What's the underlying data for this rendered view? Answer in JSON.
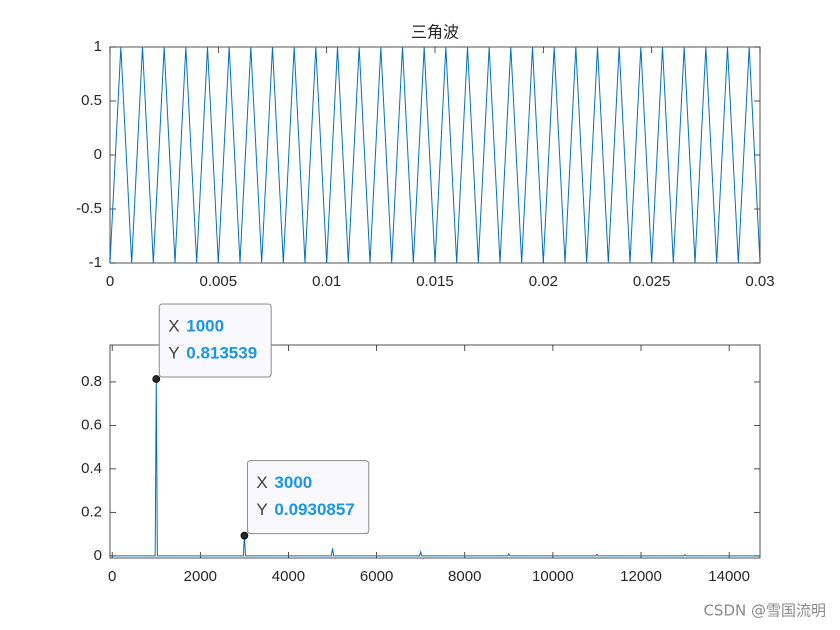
{
  "chart_data": [
    {
      "type": "line",
      "title": "三角波",
      "color": "#0072BD",
      "x": [
        0,
        0.0005,
        0.001,
        0.0015,
        0.002,
        0.0025,
        0.003,
        0.0035,
        0.004,
        0.0045,
        0.005,
        0.0055,
        0.006,
        0.0065,
        0.007,
        0.0075,
        0.008,
        0.0085,
        0.009,
        0.0095,
        0.01,
        0.0105,
        0.011,
        0.0115,
        0.012,
        0.0125,
        0.013,
        0.0135,
        0.014,
        0.0145,
        0.015,
        0.0155,
        0.016,
        0.0165,
        0.017,
        0.0175,
        0.018,
        0.0185,
        0.019,
        0.0195,
        0.02,
        0.0205,
        0.021,
        0.0215,
        0.022,
        0.0225,
        0.023,
        0.0235,
        0.024,
        0.0245,
        0.025,
        0.0255,
        0.026,
        0.0265,
        0.027,
        0.0275,
        0.028,
        0.0285,
        0.029,
        0.0295,
        0.03
      ],
      "values": [
        -1,
        1,
        -1,
        1,
        -1,
        1,
        -1,
        1,
        -1,
        1,
        -1,
        1,
        -1,
        1,
        -1,
        1,
        -1,
        1,
        -1,
        1,
        -1,
        1,
        -1,
        1,
        -1,
        1,
        -1,
        1,
        -1,
        1,
        -1,
        1,
        -1,
        1,
        -1,
        1,
        -1,
        1,
        -1,
        1,
        -1,
        1,
        -1,
        1,
        -1,
        1,
        -1,
        1,
        -1,
        1,
        -1,
        1,
        -1,
        1,
        -1,
        1,
        -1,
        1,
        -1,
        1,
        -1
      ],
      "xlim": [
        0,
        0.03
      ],
      "xticks": [
        0,
        0.005,
        0.01,
        0.015,
        0.02,
        0.025,
        0.03
      ],
      "ylim": [
        -1,
        1
      ],
      "yticks": [
        -1,
        -0.5,
        0,
        0.5,
        1
      ]
    },
    {
      "type": "line",
      "color": "#0072BD",
      "x": [
        0,
        975,
        1000,
        1025,
        2975,
        3000,
        3025,
        4975,
        5000,
        5025,
        6975,
        7000,
        7025,
        8975,
        9000,
        9025,
        10975,
        11000,
        11025,
        12975,
        13000,
        13025,
        14700
      ],
      "values": [
        0,
        0,
        0.813539,
        0,
        0,
        0.0930857,
        0,
        0,
        0.035,
        0,
        0,
        0.018,
        0,
        0,
        0.01,
        0,
        0,
        0.007,
        0,
        0,
        0.005,
        0,
        0
      ],
      "xlim": [
        -50,
        14700
      ],
      "xticks": [
        0,
        2000,
        4000,
        6000,
        8000,
        10000,
        12000,
        14000
      ],
      "ylim": [
        -0.01,
        0.97
      ],
      "yticks": [
        0,
        0.2,
        0.4,
        0.6,
        0.8
      ],
      "datatip_labels": [
        "X",
        "Y"
      ],
      "datatips": [
        {
          "x": 1000,
          "y": 0.813539
        },
        {
          "x": 3000,
          "y": 0.0930857
        }
      ]
    }
  ],
  "watermark": "CSDN @雪国流明"
}
